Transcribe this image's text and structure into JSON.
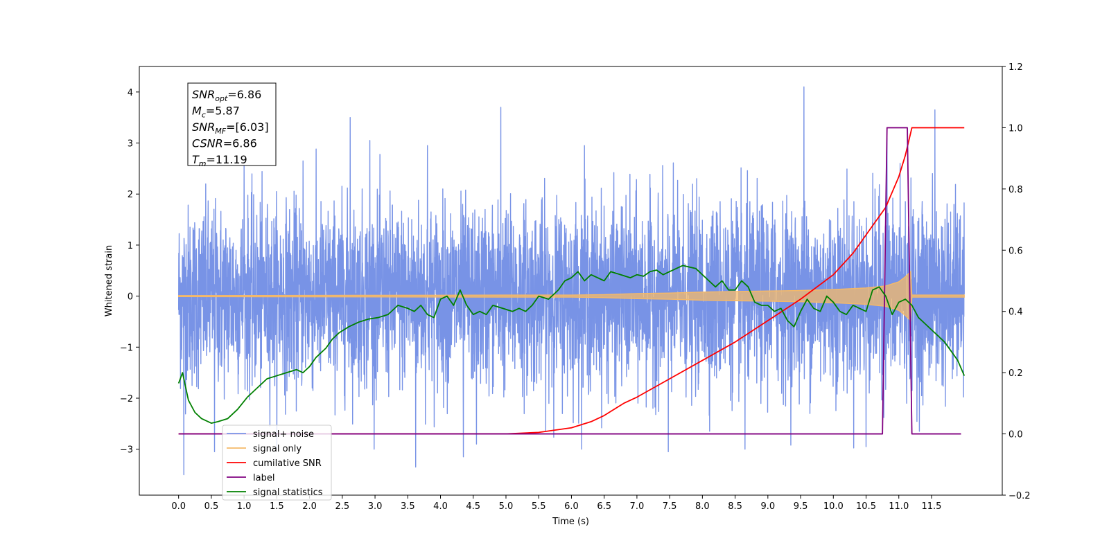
{
  "chart_data": {
    "type": "line",
    "xlabel": "Time (s)",
    "ylabel": "Whitened strain",
    "xlim": [
      -0.6,
      12.58
    ],
    "ylim": [
      -3.9,
      4.5
    ],
    "y2lim": [
      -0.2,
      1.2
    ],
    "x_ticks": [
      0.0,
      0.5,
      1.0,
      1.5,
      2.0,
      2.5,
      3.0,
      3.5,
      4.0,
      4.5,
      5.0,
      5.5,
      6.0,
      6.5,
      7.0,
      7.5,
      8.0,
      8.5,
      9.0,
      9.5,
      10.0,
      10.5,
      11.0,
      11.5
    ],
    "x_tick_labels": [
      "0.0",
      "0.5",
      "1.0",
      "1.5",
      "2.0",
      "2.5",
      "3.0",
      "3.5",
      "4.0",
      "4.5",
      "5.0",
      "5.5",
      "6.0",
      "6.5",
      "7.0",
      "7.5",
      "8.0",
      "8.5",
      "9.0",
      "9.5",
      "10.0",
      "10.5",
      "11.0",
      "11.5"
    ],
    "y_ticks": [
      -3,
      -2,
      -1,
      0,
      1,
      2,
      3,
      4
    ],
    "y_tick_labels": [
      "−3",
      "−2",
      "−1",
      "0",
      "1",
      "2",
      "3",
      "4"
    ],
    "y2_ticks": [
      -0.2,
      0.0,
      0.2,
      0.4,
      0.6,
      0.8,
      1.0,
      1.2
    ],
    "y2_tick_labels": [
      "−0.2",
      "0.0",
      "0.2",
      "0.4",
      "0.6",
      "0.8",
      "1.0",
      "1.2"
    ],
    "grid": false,
    "legend_position": "lower-left",
    "annotation": {
      "lines": [
        {
          "name": "SNR",
          "sub": "opt",
          "value": "=6.86"
        },
        {
          "name": "M",
          "sub": "c",
          "value": "=5.87"
        },
        {
          "name": "SNR",
          "sub": "MF",
          "value": "=[6.03]"
        },
        {
          "name": "CSNR",
          "sub": "",
          "value": "=6.86"
        },
        {
          "name": "T",
          "sub": "m",
          "value": "=11.19"
        }
      ]
    },
    "series": [
      {
        "name": "signal+ noise",
        "color": "#7893e6",
        "axis": "left",
        "kind": "noise",
        "x_range": [
          0.0,
          12.0
        ],
        "envelope_typical": [
          -1.6,
          1.6
        ],
        "spikes": [
          {
            "x": 0.08,
            "y": -3.5
          },
          {
            "x": 0.55,
            "y": -3.05
          },
          {
            "x": 1.0,
            "y": 2.6
          },
          {
            "x": 1.9,
            "y": 2.65
          },
          {
            "x": 2.62,
            "y": 3.5
          },
          {
            "x": 2.92,
            "y": 3.05
          },
          {
            "x": 3.62,
            "y": -3.35
          },
          {
            "x": 3.8,
            "y": 2.95
          },
          {
            "x": 4.35,
            "y": -3.15
          },
          {
            "x": 4.55,
            "y": -2.9
          },
          {
            "x": 4.92,
            "y": 3.7
          },
          {
            "x": 6.2,
            "y": 2.95
          },
          {
            "x": 7.48,
            "y": -3.05
          },
          {
            "x": 8.65,
            "y": -3.0
          },
          {
            "x": 9.55,
            "y": 4.1
          },
          {
            "x": 10.5,
            "y": -2.95
          },
          {
            "x": 10.82,
            "y": 3.1
          },
          {
            "x": 11.02,
            "y": 2.6
          },
          {
            "x": 11.55,
            "y": 3.65
          }
        ]
      },
      {
        "name": "signal only",
        "color": "#f5b968",
        "axis": "left",
        "kind": "envelope",
        "x": [
          0.0,
          5.0,
          6.0,
          6.5,
          7.0,
          7.5,
          8.0,
          8.5,
          9.0,
          9.5,
          10.0,
          10.5,
          10.8,
          11.0,
          11.1,
          11.18,
          11.2,
          12.0
        ],
        "amplitude": [
          0.01,
          0.02,
          0.02,
          0.03,
          0.05,
          0.06,
          0.08,
          0.09,
          0.1,
          0.11,
          0.13,
          0.16,
          0.2,
          0.28,
          0.38,
          0.48,
          0.02,
          0.02
        ]
      },
      {
        "name": "cumilative SNR",
        "color": "#ff0000",
        "axis": "right",
        "kind": "line",
        "x": [
          0.0,
          5.0,
          5.5,
          6.0,
          6.3,
          6.5,
          6.8,
          7.0,
          7.5,
          8.0,
          8.5,
          9.0,
          9.5,
          10.0,
          10.3,
          10.6,
          10.8,
          11.0,
          11.1,
          11.2,
          12.0
        ],
        "y": [
          0.0,
          0.0,
          0.005,
          0.02,
          0.04,
          0.06,
          0.1,
          0.12,
          0.18,
          0.24,
          0.3,
          0.37,
          0.44,
          0.52,
          0.59,
          0.68,
          0.74,
          0.84,
          0.91,
          1.0,
          1.0
        ]
      },
      {
        "name": "label",
        "color": "#800080",
        "axis": "right",
        "kind": "line",
        "x": [
          0.0,
          10.75,
          10.82,
          11.13,
          11.2,
          11.95
        ],
        "y": [
          0.0,
          0.0,
          1.0,
          1.0,
          0.0,
          0.0
        ]
      },
      {
        "name": "signal statistics",
        "color": "#008000",
        "axis": "right",
        "kind": "line",
        "x": [
          0.0,
          0.06,
          0.15,
          0.25,
          0.35,
          0.5,
          0.6,
          0.75,
          0.9,
          1.05,
          1.2,
          1.35,
          1.5,
          1.65,
          1.8,
          1.9,
          2.0,
          2.1,
          2.25,
          2.35,
          2.45,
          2.6,
          2.75,
          2.9,
          3.05,
          3.2,
          3.35,
          3.5,
          3.6,
          3.7,
          3.8,
          3.9,
          4.0,
          4.1,
          4.2,
          4.3,
          4.4,
          4.5,
          4.6,
          4.7,
          4.8,
          4.95,
          5.1,
          5.2,
          5.3,
          5.4,
          5.5,
          5.65,
          5.8,
          5.9,
          6.0,
          6.1,
          6.2,
          6.3,
          6.4,
          6.5,
          6.6,
          6.75,
          6.9,
          7.0,
          7.1,
          7.2,
          7.3,
          7.4,
          7.5,
          7.6,
          7.7,
          7.8,
          7.9,
          8.0,
          8.1,
          8.2,
          8.3,
          8.4,
          8.5,
          8.6,
          8.7,
          8.8,
          8.9,
          9.0,
          9.1,
          9.2,
          9.3,
          9.4,
          9.5,
          9.6,
          9.7,
          9.8,
          9.9,
          10.0,
          10.1,
          10.2,
          10.3,
          10.4,
          10.5,
          10.6,
          10.7,
          10.8,
          10.9,
          11.0,
          11.1,
          11.2,
          11.3,
          11.4,
          11.5,
          11.6,
          11.7,
          11.8,
          11.9,
          12.0
        ],
        "y": [
          0.165,
          0.2,
          0.11,
          0.07,
          0.05,
          0.035,
          0.04,
          0.05,
          0.08,
          0.12,
          0.15,
          0.18,
          0.19,
          0.2,
          0.21,
          0.2,
          0.22,
          0.25,
          0.28,
          0.31,
          0.33,
          0.35,
          0.365,
          0.375,
          0.38,
          0.39,
          0.42,
          0.41,
          0.4,
          0.42,
          0.39,
          0.38,
          0.44,
          0.45,
          0.42,
          0.47,
          0.42,
          0.39,
          0.4,
          0.39,
          0.42,
          0.41,
          0.4,
          0.41,
          0.4,
          0.42,
          0.45,
          0.44,
          0.47,
          0.5,
          0.51,
          0.53,
          0.5,
          0.52,
          0.51,
          0.5,
          0.53,
          0.52,
          0.51,
          0.52,
          0.515,
          0.53,
          0.535,
          0.52,
          0.53,
          0.54,
          0.55,
          0.545,
          0.54,
          0.52,
          0.5,
          0.48,
          0.5,
          0.47,
          0.47,
          0.5,
          0.48,
          0.43,
          0.42,
          0.42,
          0.4,
          0.41,
          0.37,
          0.35,
          0.4,
          0.44,
          0.41,
          0.4,
          0.45,
          0.43,
          0.4,
          0.39,
          0.42,
          0.41,
          0.4,
          0.47,
          0.48,
          0.45,
          0.39,
          0.43,
          0.44,
          0.42,
          0.38,
          0.36,
          0.34,
          0.32,
          0.3,
          0.27,
          0.24,
          0.19
        ]
      }
    ]
  }
}
